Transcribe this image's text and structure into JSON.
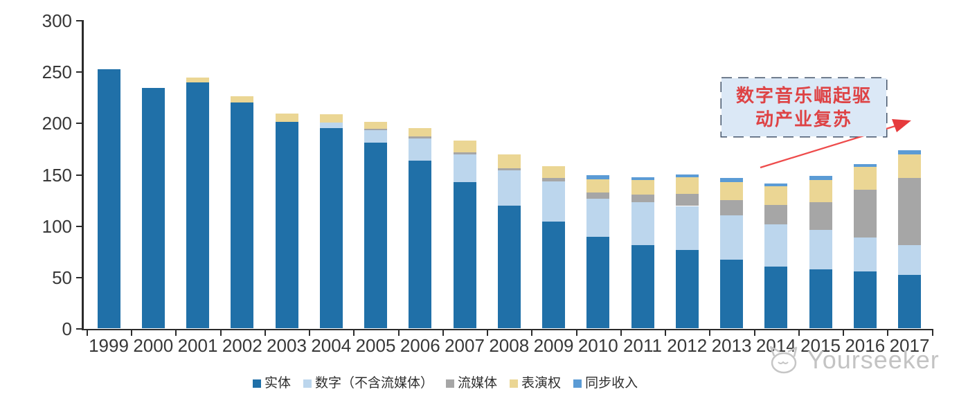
{
  "chart_data": {
    "type": "bar",
    "stacked": true,
    "title": "",
    "xlabel": "",
    "ylabel": "",
    "ylim": [
      0,
      300
    ],
    "yticks": [
      0,
      50,
      100,
      150,
      200,
      250,
      300
    ],
    "grid": false,
    "legend_position": "bottom",
    "categories": [
      "1999",
      "2000",
      "2001",
      "2002",
      "2003",
      "2004",
      "2005",
      "2006",
      "2007",
      "2008",
      "2009",
      "2010",
      "2011",
      "2012",
      "2013",
      "2014",
      "2015",
      "2016",
      "2017"
    ],
    "series": [
      {
        "name": "实体",
        "color": "#2070A8",
        "values": [
          252,
          234,
          239,
          220,
          201,
          195,
          181,
          163,
          142,
          119,
          104,
          89,
          81,
          76,
          67,
          60,
          57,
          55,
          52
        ]
      },
      {
        "name": "数字（不含流媒体）",
        "color": "#BCD6ED",
        "values": [
          0,
          0,
          0,
          0,
          0,
          5,
          12,
          22,
          27,
          35,
          39,
          37,
          42,
          43,
          43,
          41,
          39,
          33,
          29
        ]
      },
      {
        "name": "流媒体",
        "color": "#A6A6A6",
        "values": [
          0,
          0,
          0,
          0,
          0,
          0,
          1,
          2,
          2,
          2,
          3,
          6,
          7,
          12,
          15,
          19,
          27,
          47,
          65
        ]
      },
      {
        "name": "表演权",
        "color": "#EBD694",
        "values": [
          0,
          0,
          5,
          6,
          8,
          8,
          7,
          8,
          12,
          13,
          12,
          13,
          14,
          16,
          17,
          18,
          21,
          22,
          23
        ]
      },
      {
        "name": "同步收入",
        "color": "#5B9BD5",
        "values": [
          0,
          0,
          0,
          0,
          0,
          0,
          0,
          0,
          0,
          0,
          0,
          4,
          3,
          3,
          4,
          3,
          4,
          3,
          4
        ]
      }
    ]
  },
  "annotation": {
    "line1": "数字音乐崛起驱",
    "line2": "动产业复苏",
    "box_fill": "#DBE8F6",
    "box_border": "#44546A",
    "text_color": "#DE4345",
    "arrow_color": "#EE4B4B"
  },
  "watermark": {
    "text": "Yourseeker"
  }
}
